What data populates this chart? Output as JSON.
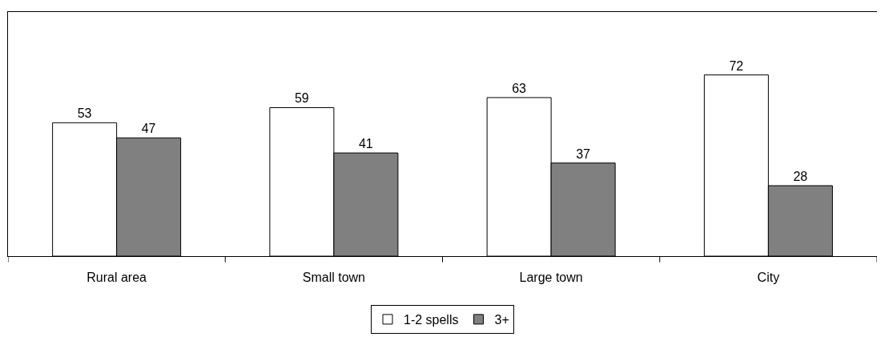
{
  "chart_data": {
    "type": "bar",
    "categories": [
      "Rural area",
      "Small town",
      "Large town",
      "City"
    ],
    "series": [
      {
        "name": "1-2 spells",
        "color": "#ffffff",
        "values": [
          53,
          59,
          63,
          72
        ]
      },
      {
        "name": "3+",
        "color": "#808080",
        "values": [
          47,
          41,
          37,
          28
        ]
      }
    ],
    "ylim": [
      0,
      97
    ],
    "data_labels": true,
    "legend": "bottom"
  }
}
